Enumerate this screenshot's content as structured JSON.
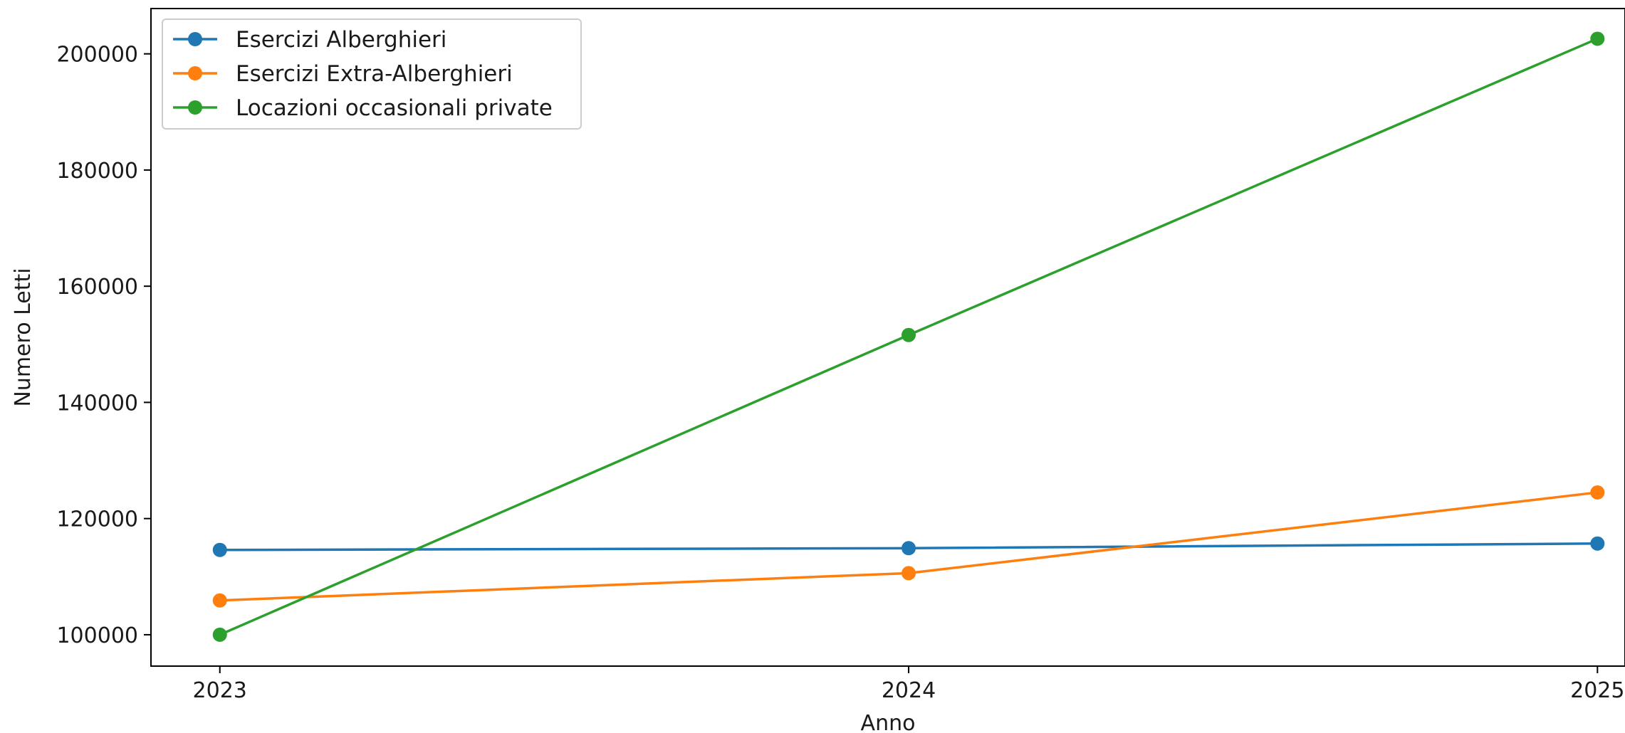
{
  "chart_data": {
    "type": "line",
    "title": "",
    "xlabel": "Anno",
    "ylabel": "Numero Letti",
    "x": [
      2023,
      2024,
      2025
    ],
    "x_tick_labels": [
      "2023",
      "2024",
      "2025"
    ],
    "xlim": [
      2022.9,
      2025.04
    ],
    "ylim": [
      94600,
      207800
    ],
    "y_ticks": [
      100000,
      120000,
      140000,
      160000,
      180000,
      200000
    ],
    "y_tick_labels": [
      "100000",
      "120000",
      "140000",
      "160000",
      "180000",
      "200000"
    ],
    "grid": false,
    "legend_position": "upper left",
    "series": [
      {
        "name": "Esercizi Alberghieri",
        "color": "#1f77b4",
        "values": [
          114600,
          114900,
          115700
        ]
      },
      {
        "name": "Esercizi Extra-Alberghieri",
        "color": "#ff7f0e",
        "values": [
          105900,
          110600,
          124500
        ]
      },
      {
        "name": "Locazioni occasionali private",
        "color": "#2ca02c",
        "values": [
          100000,
          151600,
          202600
        ]
      }
    ]
  }
}
